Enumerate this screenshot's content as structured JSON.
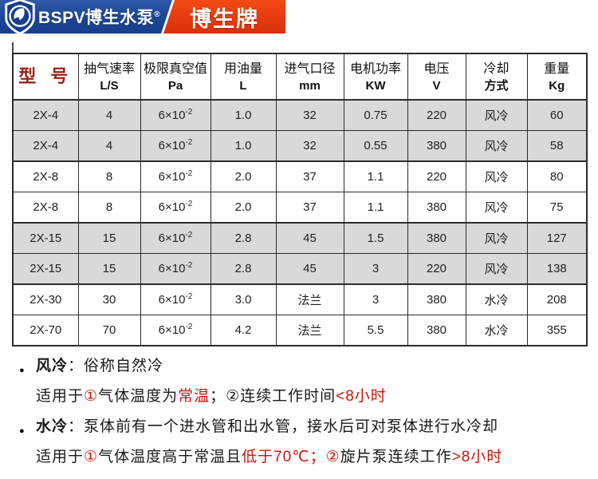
{
  "brand": {
    "logo_text": "BSPV博生水泵",
    "reg_mark": "®",
    "badge_text": "博生牌"
  },
  "colors": {
    "brand_blue": "#1b4694",
    "brand_red": "#e63c10",
    "model_header_red": "#9b1f1a",
    "note_red": "#cc1408",
    "row_shade": "#d9d9d9",
    "grid_line": "#2b2b2b"
  },
  "icons": {
    "bullet": "●",
    "logo": "shield-horse-logo"
  },
  "table": {
    "columns": [
      {
        "title": "型 号",
        "sub": "",
        "model_header": true,
        "unit": false
      },
      {
        "title": "抽气速率",
        "sub": "L/S",
        "unit": true
      },
      {
        "title": "极限真空值",
        "sub": "Pa",
        "unit": true
      },
      {
        "title": "用油量",
        "sub": "L",
        "unit": true
      },
      {
        "title": "进气口径",
        "sub": "mm",
        "unit": true
      },
      {
        "title": "电机功率",
        "sub": "KW",
        "unit": true
      },
      {
        "title": "电压",
        "sub": "V",
        "unit": true
      },
      {
        "title": "冷却",
        "sub": "方式",
        "unit": false
      },
      {
        "title": "重量",
        "sub": "Kg",
        "unit": true
      }
    ],
    "rows": [
      {
        "model": "2X-4",
        "speed": "4",
        "vacuum_base": "6×10",
        "vacuum_exp": "-2",
        "oil": "1.0",
        "inlet": "32",
        "power": "0.75",
        "voltage": "220",
        "cooling": "风冷",
        "weight": "60",
        "shaded": true,
        "group_end": false
      },
      {
        "model": "2X-4",
        "speed": "4",
        "vacuum_base": "6×10",
        "vacuum_exp": "-2",
        "oil": "1.0",
        "inlet": "32",
        "power": "0.55",
        "voltage": "380",
        "cooling": "风冷",
        "weight": "58",
        "shaded": true,
        "group_end": true
      },
      {
        "model": "2X-8",
        "speed": "8",
        "vacuum_base": "6×10",
        "vacuum_exp": "-2",
        "oil": "2.0",
        "inlet": "37",
        "power": "1.1",
        "voltage": "220",
        "cooling": "风冷",
        "weight": "80",
        "shaded": false,
        "group_end": false
      },
      {
        "model": "2X-8",
        "speed": "8",
        "vacuum_base": "6×10",
        "vacuum_exp": "-2",
        "oil": "2.0",
        "inlet": "37",
        "power": "1.1",
        "voltage": "380",
        "cooling": "风冷",
        "weight": "75",
        "shaded": false,
        "group_end": true
      },
      {
        "model": "2X-15",
        "speed": "15",
        "vacuum_base": "6×10",
        "vacuum_exp": "-2",
        "oil": "2.8",
        "inlet": "45",
        "power": "1.5",
        "voltage": "380",
        "cooling": "风冷",
        "weight": "127",
        "shaded": true,
        "group_end": false
      },
      {
        "model": "2X-15",
        "speed": "15",
        "vacuum_base": "6×10",
        "vacuum_exp": "-2",
        "oil": "2.8",
        "inlet": "45",
        "power": "3",
        "voltage": "220",
        "cooling": "风冷",
        "weight": "138",
        "shaded": true,
        "group_end": true
      },
      {
        "model": "2X-30",
        "speed": "30",
        "vacuum_base": "6×10",
        "vacuum_exp": "-2",
        "oil": "3.0",
        "inlet": "法兰",
        "power": "3",
        "voltage": "380",
        "cooling": "水冷",
        "weight": "208",
        "shaded": false,
        "group_end": false
      },
      {
        "model": "2X-70",
        "speed": "70",
        "vacuum_base": "6×10",
        "vacuum_exp": "-2",
        "oil": "4.2",
        "inlet": "法兰",
        "power": "5.5",
        "voltage": "380",
        "cooling": "水冷",
        "weight": "355",
        "shaded": false,
        "group_end": false
      }
    ]
  },
  "notes": [
    {
      "bullet": true,
      "segments": [
        {
          "t": "风冷",
          "bold": true
        },
        {
          "t": "：俗称自然冷"
        }
      ]
    },
    {
      "bullet": false,
      "segments": [
        {
          "t": "适用于"
        },
        {
          "t": "①",
          "red": true
        },
        {
          "t": "气体温度为"
        },
        {
          "t": "常温",
          "red": true
        },
        {
          "t": "；②连续工作时间"
        },
        {
          "t": "<8小时",
          "red": true
        }
      ]
    },
    {
      "bullet": true,
      "segments": [
        {
          "t": "水冷",
          "bold": true
        },
        {
          "t": "：泵体前有一个进水管和出水管，接水后可对泵体进行水冷却"
        }
      ]
    },
    {
      "bullet": false,
      "segments": [
        {
          "t": "适用于"
        },
        {
          "t": "①",
          "red": true
        },
        {
          "t": "气体温度高于常温且"
        },
        {
          "t": "低于70℃",
          "red": true
        },
        {
          "t": "；",
          "red": true
        },
        {
          "t": "②",
          "red": true
        },
        {
          "t": "旋片泵连续工作"
        },
        {
          "t": ">8小时",
          "red": true
        }
      ]
    }
  ]
}
